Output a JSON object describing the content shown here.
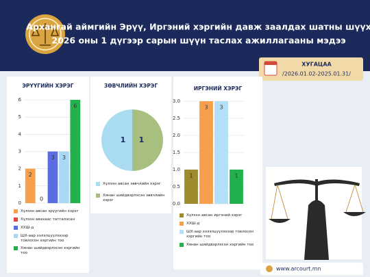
{
  "header": {
    "title_lines": [
      "Архангай аймгийн Эрүү, Иргэний хэргийн давж заалдах шатны шүүх",
      "2026 оны 1 дүгээр сарын шүүн таслах ажиллагааны мэдээ"
    ]
  },
  "period": {
    "label": "ХУГАЦАА",
    "range": "/2026.01.02-2025.01.31/"
  },
  "footer": {
    "website": "www.arcourt.mn"
  },
  "chart_data": [
    {
      "type": "bar",
      "title": "ЭРҮҮГИЙН ХЭРЭГ",
      "categories": [
        "Хүлээн авсан эрүүгийн хэрэг",
        "Хүлээн авахаас татгалзсан",
        "ХХШ-д",
        "ШХ-аар хэлэлцүүлэхээр товлосон хэргийн тоо",
        "Хянан шийдвэрлэсэн хэргийн тоо"
      ],
      "values": [
        2,
        0,
        3,
        3,
        6
      ],
      "colors": [
        "#f6a04d",
        "#e8413c",
        "#5b6ee1",
        "#a9d8f5",
        "#22b14c"
      ],
      "ylim": [
        0,
        6
      ],
      "yticks": [
        0,
        1,
        2,
        3,
        4,
        5,
        6
      ],
      "grid": true
    },
    {
      "type": "pie",
      "title": "ЗӨВЧЛИЙН ХЭРЭГ",
      "categories": [
        "Хүлээн авсан зөвчлийн хэрэг",
        "Хянан шийдвэрлэсэн зөвчлийн хэрэг"
      ],
      "values": [
        1,
        1
      ],
      "colors": [
        "#a9dcf0",
        "#a7c080"
      ]
    },
    {
      "type": "bar",
      "title": "ИРГЭНИЙ ХЭРЭГ",
      "categories": [
        "Хүлээн авсан иргэний хэрэг",
        "ХХШ-д",
        "ШХ-аар хэлэлцүүлэхээр товлосон хэргийн тоо",
        "Хянан шийдвэрлэсэн хэргийн тоо"
      ],
      "values": [
        1,
        3,
        3,
        1
      ],
      "colors": [
        "#a08a2e",
        "#f6a04d",
        "#b3e0f7",
        "#22b14c"
      ],
      "ylim": [
        0,
        3
      ],
      "yticks": [
        {
          "value": 0,
          "label": "0.0"
        },
        {
          "value": 0.5,
          "label": "0.5"
        },
        {
          "value": 1,
          "label": "1.0"
        },
        {
          "value": 1.5,
          "label": "1.5"
        },
        {
          "value": 2,
          "label": "2.0"
        },
        {
          "value": 2.5,
          "label": "2.5"
        },
        {
          "value": 3,
          "label": "3.0"
        }
      ],
      "grid": true
    }
  ]
}
